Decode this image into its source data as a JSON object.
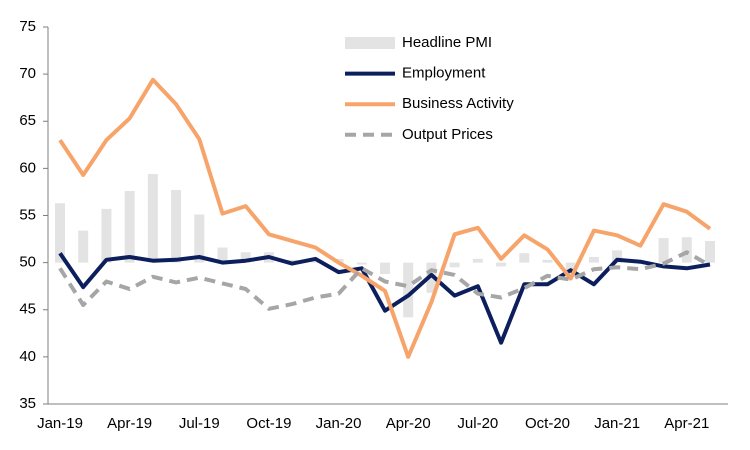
{
  "chart_data": {
    "type": "combo",
    "categories": [
      "Jan-19",
      null,
      null,
      "Apr-19",
      null,
      null,
      "Jul-19",
      null,
      null,
      "Oct-19",
      null,
      null,
      "Jan-20",
      null,
      null,
      "Apr-20",
      null,
      null,
      "Jul-20",
      null,
      null,
      "Oct-20",
      null,
      null,
      "Jan-21",
      null,
      null,
      "Apr-21",
      null
    ],
    "series": [
      {
        "name": "Headline PMI",
        "type": "bar",
        "color": "#e3e3e3",
        "values": [
          56.3,
          53.4,
          55.7,
          57.6,
          59.4,
          57.7,
          55.1,
          51.6,
          51.1,
          51.1,
          50.3,
          50.1,
          50.4,
          49.8,
          48.8,
          44.2,
          46.8,
          49.5,
          50.4,
          49.6,
          51.0,
          50.3,
          48.6,
          50.6,
          51.3,
          50.1,
          52.6,
          52.7,
          52.3
        ]
      },
      {
        "name": "Employment",
        "type": "line",
        "color": "#0c1f5c",
        "values": [
          51.0,
          47.4,
          50.3,
          50.6,
          50.2,
          50.3,
          50.6,
          50.0,
          50.2,
          50.6,
          49.9,
          50.4,
          49.0,
          49.4,
          44.9,
          46.5,
          48.7,
          46.5,
          47.5,
          41.5,
          47.7,
          47.7,
          49.2,
          47.7,
          50.3,
          50.1,
          49.6,
          49.4,
          49.8
        ]
      },
      {
        "name": "Business Activity",
        "type": "line",
        "color": "#f7a46b",
        "values": [
          63.0,
          59.3,
          63.0,
          65.3,
          69.4,
          66.8,
          63.1,
          55.2,
          56.0,
          53.0,
          52.3,
          51.6,
          50.0,
          48.6,
          47.0,
          40.0,
          45.8,
          53.0,
          53.7,
          50.4,
          52.9,
          51.4,
          48.3,
          53.4,
          52.9,
          51.8,
          56.2,
          55.4,
          53.6
        ]
      },
      {
        "name": "Output Prices",
        "type": "line",
        "color": "#a6a6a6",
        "dashed": true,
        "values": [
          49.4,
          45.5,
          48.0,
          47.2,
          48.5,
          47.9,
          48.4,
          47.8,
          47.2,
          45.1,
          45.6,
          46.3,
          46.7,
          49.4,
          48.0,
          47.5,
          49.2,
          48.7,
          46.7,
          46.3,
          47.3,
          48.6,
          48.2,
          49.3,
          49.5,
          49.3,
          49.9,
          51.1,
          49.7
        ]
      }
    ],
    "bar_baseline": 50,
    "ylim": [
      35,
      75
    ],
    "yticks": [
      35,
      40,
      45,
      50,
      55,
      60,
      65,
      70,
      75
    ],
    "grid": false,
    "legend": "top"
  }
}
